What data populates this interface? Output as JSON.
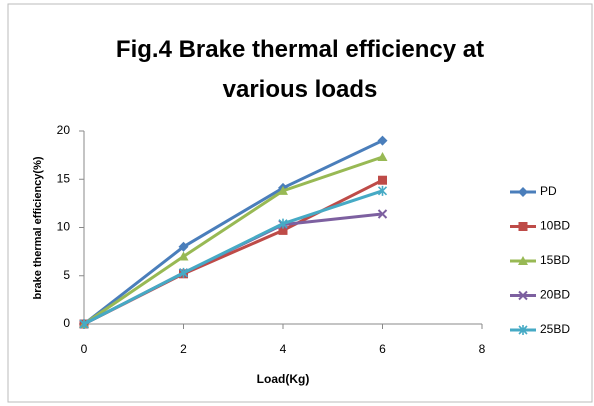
{
  "chart_data": {
    "type": "line",
    "title": "Fig.4 Brake thermal efficiency at various loads",
    "x_label": "Load(Kg)",
    "y_label": "brake thermal efficiency(%)",
    "x": [
      0,
      2,
      4,
      6
    ],
    "xlim": [
      0,
      8
    ],
    "xticks": [
      0,
      2,
      4,
      6,
      8
    ],
    "ylim": [
      0,
      20
    ],
    "yticks": [
      0,
      5,
      10,
      15,
      20
    ],
    "grid": false,
    "legend": "right",
    "series": [
      {
        "name": "PD",
        "color": "#4a7ebb",
        "marker": "diamond",
        "values": [
          0,
          8,
          14.1,
          19
        ]
      },
      {
        "name": "10BD",
        "color": "#be4b48",
        "marker": "square",
        "values": [
          0,
          5.2,
          9.7,
          14.9
        ]
      },
      {
        "name": "15BD",
        "color": "#98b954",
        "marker": "triangle",
        "values": [
          0,
          7,
          13.8,
          17.3
        ]
      },
      {
        "name": "20BD",
        "color": "#7d60a0",
        "marker": "x",
        "values": [
          0,
          5.3,
          10.3,
          11.4
        ]
      },
      {
        "name": "25BD",
        "color": "#46aac5",
        "marker": "star",
        "values": [
          0,
          5.3,
          10.4,
          13.8
        ]
      }
    ]
  }
}
